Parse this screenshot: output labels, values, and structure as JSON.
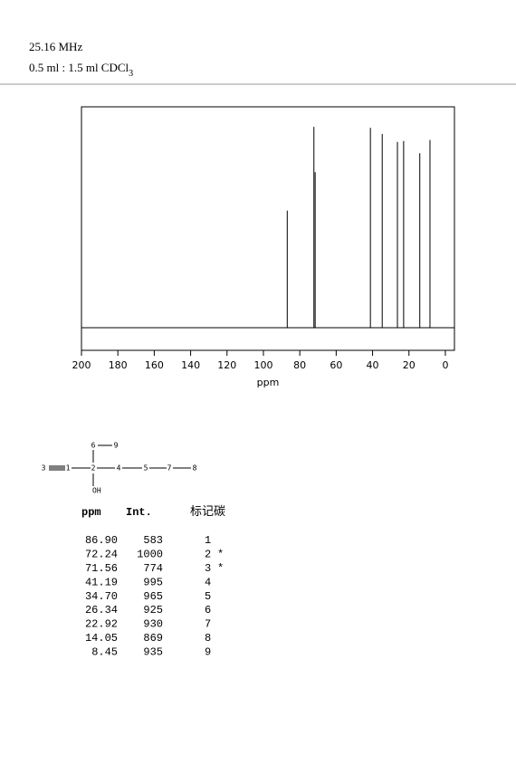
{
  "header": {
    "frequency": "25.16 MHz",
    "solvent": "0.5 ml : 1.5 ml CDCl",
    "solvent_subscript": "3"
  },
  "chart_data": {
    "type": "stem",
    "x_label": "ppm",
    "x": [
      86.9,
      72.24,
      71.56,
      41.19,
      34.7,
      26.34,
      22.92,
      14.05,
      8.45
    ],
    "values": [
      583,
      1000,
      774,
      995,
      965,
      925,
      930,
      869,
      935
    ],
    "color": "#000000",
    "xlim": [
      200,
      -5
    ],
    "xticks": [
      200,
      180,
      160,
      140,
      120,
      100,
      80,
      60,
      40,
      20,
      0
    ],
    "ylim": [
      -113,
      1100
    ]
  },
  "structure": {
    "atoms": [
      "3",
      "1",
      "2",
      "4",
      "5",
      "7",
      "8",
      "6",
      "9",
      "OH"
    ]
  },
  "table": {
    "columns": [
      "ppm",
      "Int.",
      "标记碳"
    ],
    "rows": [
      [
        "86.90",
        "583",
        "1",
        ""
      ],
      [
        "72.24",
        "1000",
        "2",
        "*"
      ],
      [
        "71.56",
        "774",
        "3",
        "*"
      ],
      [
        "41.19",
        "995",
        "4",
        ""
      ],
      [
        "34.70",
        "965",
        "5",
        ""
      ],
      [
        "26.34",
        "925",
        "6",
        ""
      ],
      [
        "22.92",
        "930",
        "7",
        ""
      ],
      [
        "14.05",
        "869",
        "8",
        ""
      ],
      [
        "8.45",
        "935",
        "9",
        ""
      ]
    ]
  }
}
